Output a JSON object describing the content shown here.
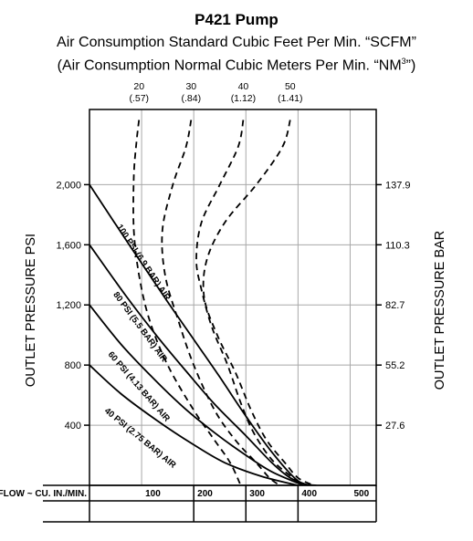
{
  "titles": {
    "main": "P421 Pump",
    "sub1": "Air Consumption Standard Cubic Feet Per Min. “SCFM”",
    "sub2_pre": "(Air Consumption Normal Cubic Meters Per Min. “NM",
    "sub2_sup": "3",
    "sub2_post": "”)"
  },
  "chart_data": {
    "type": "line",
    "xlabel": "FLOW ~ CU. IN./MIN.",
    "ylabel_left": "OUTLET PRESSURE PSI",
    "ylabel_right": "OUTLET PRESSURE BAR",
    "xlim": [
      0,
      550
    ],
    "ylim": [
      0,
      2500
    ],
    "x_ticks": [
      100,
      200,
      300,
      400,
      500
    ],
    "y_ticks_left": [
      400,
      800,
      1200,
      1600,
      2000
    ],
    "y_ticks_left_labels": [
      "400",
      "800",
      "1,200",
      "1,600",
      "2,000"
    ],
    "y_ticks_right": [
      400,
      800,
      1200,
      1600,
      2000
    ],
    "y_ticks_right_labels": [
      "27.6",
      "55.2",
      "82.7",
      "110.3",
      "137.9"
    ],
    "grid": true,
    "air_series": [
      {
        "name": "100 PSI (6.9 BAR) AIR",
        "label_at": [
          52,
          1720
        ],
        "points": [
          [
            0,
            2000
          ],
          [
            80,
            1580
          ],
          [
            150,
            1220
          ],
          [
            200,
            970
          ],
          [
            250,
            720
          ],
          [
            300,
            460
          ],
          [
            350,
            220
          ],
          [
            400,
            30
          ],
          [
            435,
            0
          ]
        ]
      },
      {
        "name": "80 PSI (5.5 BAR) AIR",
        "label_at": [
          45,
          1270
        ],
        "points": [
          [
            0,
            1600
          ],
          [
            70,
            1260
          ],
          [
            130,
            990
          ],
          [
            190,
            740
          ],
          [
            240,
            540
          ],
          [
            300,
            330
          ],
          [
            350,
            150
          ],
          [
            385,
            50
          ],
          [
            420,
            0
          ]
        ]
      },
      {
        "name": "60 PSI (4.13 BAR) AIR",
        "label_at": [
          35,
          870
        ],
        "points": [
          [
            0,
            1200
          ],
          [
            60,
            940
          ],
          [
            120,
            720
          ],
          [
            180,
            520
          ],
          [
            240,
            350
          ],
          [
            300,
            200
          ],
          [
            350,
            90
          ],
          [
            410,
            0
          ]
        ]
      },
      {
        "name": "40 PSI (2.75 BAR) AIR",
        "label_at": [
          28,
          490
        ],
        "points": [
          [
            0,
            800
          ],
          [
            60,
            610
          ],
          [
            130,
            430
          ],
          [
            200,
            270
          ],
          [
            260,
            150
          ],
          [
            330,
            60
          ],
          [
            400,
            0
          ]
        ]
      }
    ],
    "scfm_series": [
      {
        "label": "20",
        "label_nm": "(.57)",
        "points": [
          [
            95,
            2430
          ],
          [
            90,
            2280
          ],
          [
            85,
            2050
          ],
          [
            85,
            1700
          ],
          [
            95,
            1400
          ],
          [
            115,
            1100
          ],
          [
            150,
            800
          ],
          [
            200,
            500
          ],
          [
            240,
            300
          ],
          [
            270,
            150
          ],
          [
            290,
            0
          ]
        ]
      },
      {
        "label": "30",
        "label_nm": "(.84)",
        "points": [
          [
            195,
            2430
          ],
          [
            185,
            2250
          ],
          [
            160,
            2000
          ],
          [
            140,
            1700
          ],
          [
            145,
            1400
          ],
          [
            170,
            1100
          ],
          [
            200,
            800
          ],
          [
            240,
            500
          ],
          [
            280,
            300
          ],
          [
            320,
            150
          ],
          [
            345,
            50
          ],
          [
            365,
            0
          ]
        ]
      },
      {
        "label": "40",
        "label_nm": "(1.12)",
        "points": [
          [
            295,
            2430
          ],
          [
            285,
            2250
          ],
          [
            250,
            2000
          ],
          [
            215,
            1750
          ],
          [
            205,
            1500
          ],
          [
            215,
            1300
          ],
          [
            235,
            1050
          ],
          [
            265,
            800
          ],
          [
            290,
            550
          ],
          [
            315,
            350
          ],
          [
            350,
            170
          ],
          [
            390,
            50
          ],
          [
            410,
            0
          ]
        ]
      },
      {
        "label": "50",
        "label_nm": "(1.41)",
        "points": [
          [
            385,
            2430
          ],
          [
            370,
            2250
          ],
          [
            320,
            2000
          ],
          [
            260,
            1750
          ],
          [
            225,
            1500
          ],
          [
            220,
            1250
          ],
          [
            245,
            1000
          ],
          [
            280,
            750
          ],
          [
            310,
            500
          ],
          [
            340,
            300
          ],
          [
            375,
            150
          ],
          [
            400,
            50
          ],
          [
            430,
            0
          ]
        ]
      }
    ]
  }
}
